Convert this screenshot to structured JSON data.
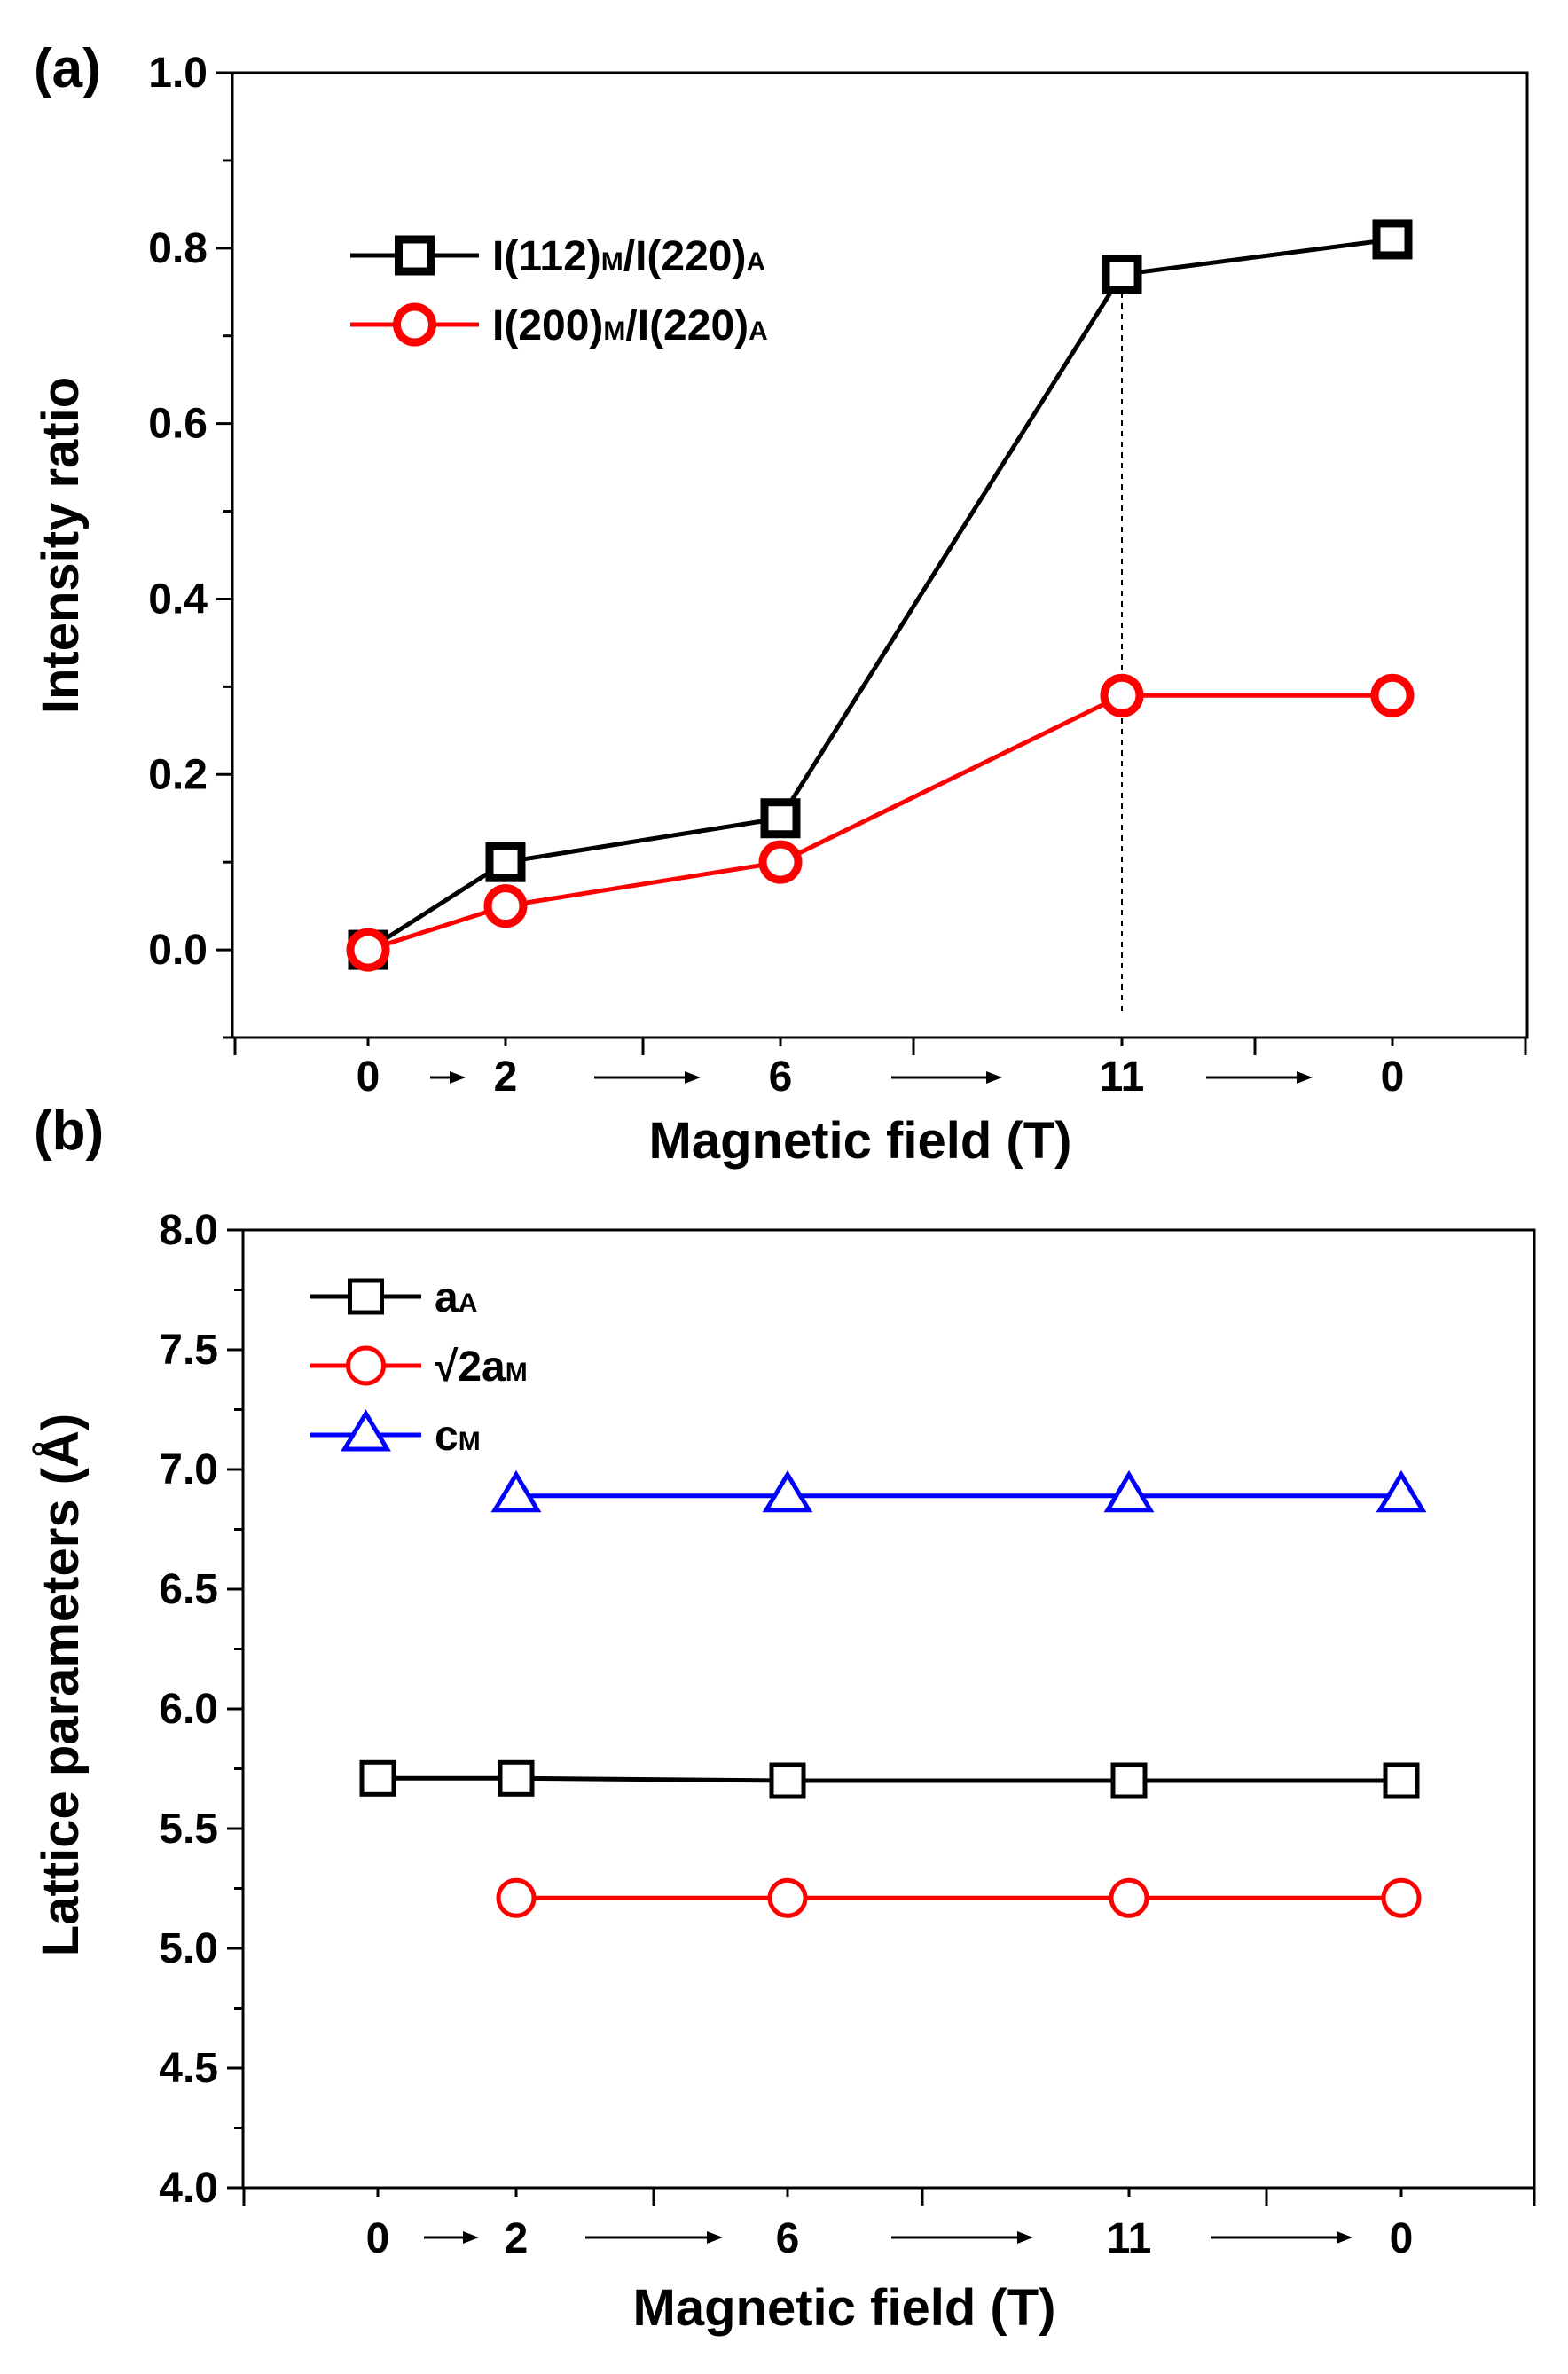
{
  "chart_data": [
    {
      "panel_label": "(a)",
      "type": "line",
      "ylabel": "Intensity ratio",
      "xlabel": "Magnetic field (T)",
      "ylim": [
        -0.1,
        1.0
      ],
      "yticks": [
        "0.0",
        "0.2",
        "0.4",
        "0.6",
        "0.8",
        "1.0"
      ],
      "yticks_values": [
        0.0,
        0.2,
        0.4,
        0.6,
        0.8,
        1.0
      ],
      "categories": [
        "0",
        "2",
        "6",
        "11",
        "0"
      ],
      "series": [
        {
          "name": "I(112)M/I(220)A",
          "parts": [
            "I(112)",
            "M",
            "/I(220)",
            "A"
          ],
          "color": "#000000",
          "marker": "square",
          "values": [
            0.0,
            0.1,
            0.15,
            0.77,
            0.81
          ]
        },
        {
          "name": "I(200)M/I(220)A",
          "parts": [
            "I(200)",
            "M",
            "/I(220)",
            "A"
          ],
          "color": "#ff0000",
          "marker": "circle",
          "values": [
            0.0,
            0.05,
            0.1,
            0.29,
            0.29
          ]
        }
      ],
      "annotation": "dotted vertical line at 11 T"
    },
    {
      "panel_label": "(b)",
      "type": "line",
      "ylabel": "Lattice parameters (Å)",
      "xlabel": "Magnetic field (T)",
      "ylim": [
        4.0,
        8.0
      ],
      "yticks": [
        "4.0",
        "4.5",
        "5.0",
        "5.5",
        "6.0",
        "6.5",
        "7.0",
        "7.5",
        "8.0"
      ],
      "yticks_values": [
        4.0,
        4.5,
        5.0,
        5.5,
        6.0,
        6.5,
        7.0,
        7.5,
        8.0
      ],
      "categories": [
        "0",
        "2",
        "6",
        "11",
        "0"
      ],
      "series": [
        {
          "name": "aA",
          "parts": [
            "a",
            "A"
          ],
          "color": "#000000",
          "marker": "square",
          "values": [
            5.71,
            5.71,
            5.7,
            5.7,
            5.7
          ]
        },
        {
          "name": "√2aM",
          "parts": [
            "√2a",
            "M"
          ],
          "color": "#ff0000",
          "marker": "circle",
          "values": [
            null,
            5.21,
            5.21,
            5.21,
            5.21
          ]
        },
        {
          "name": "cM",
          "parts": [
            "c",
            "M"
          ],
          "color": "#0000ff",
          "marker": "triangle",
          "values": [
            null,
            6.89,
            6.89,
            6.89,
            6.89
          ]
        }
      ]
    }
  ]
}
